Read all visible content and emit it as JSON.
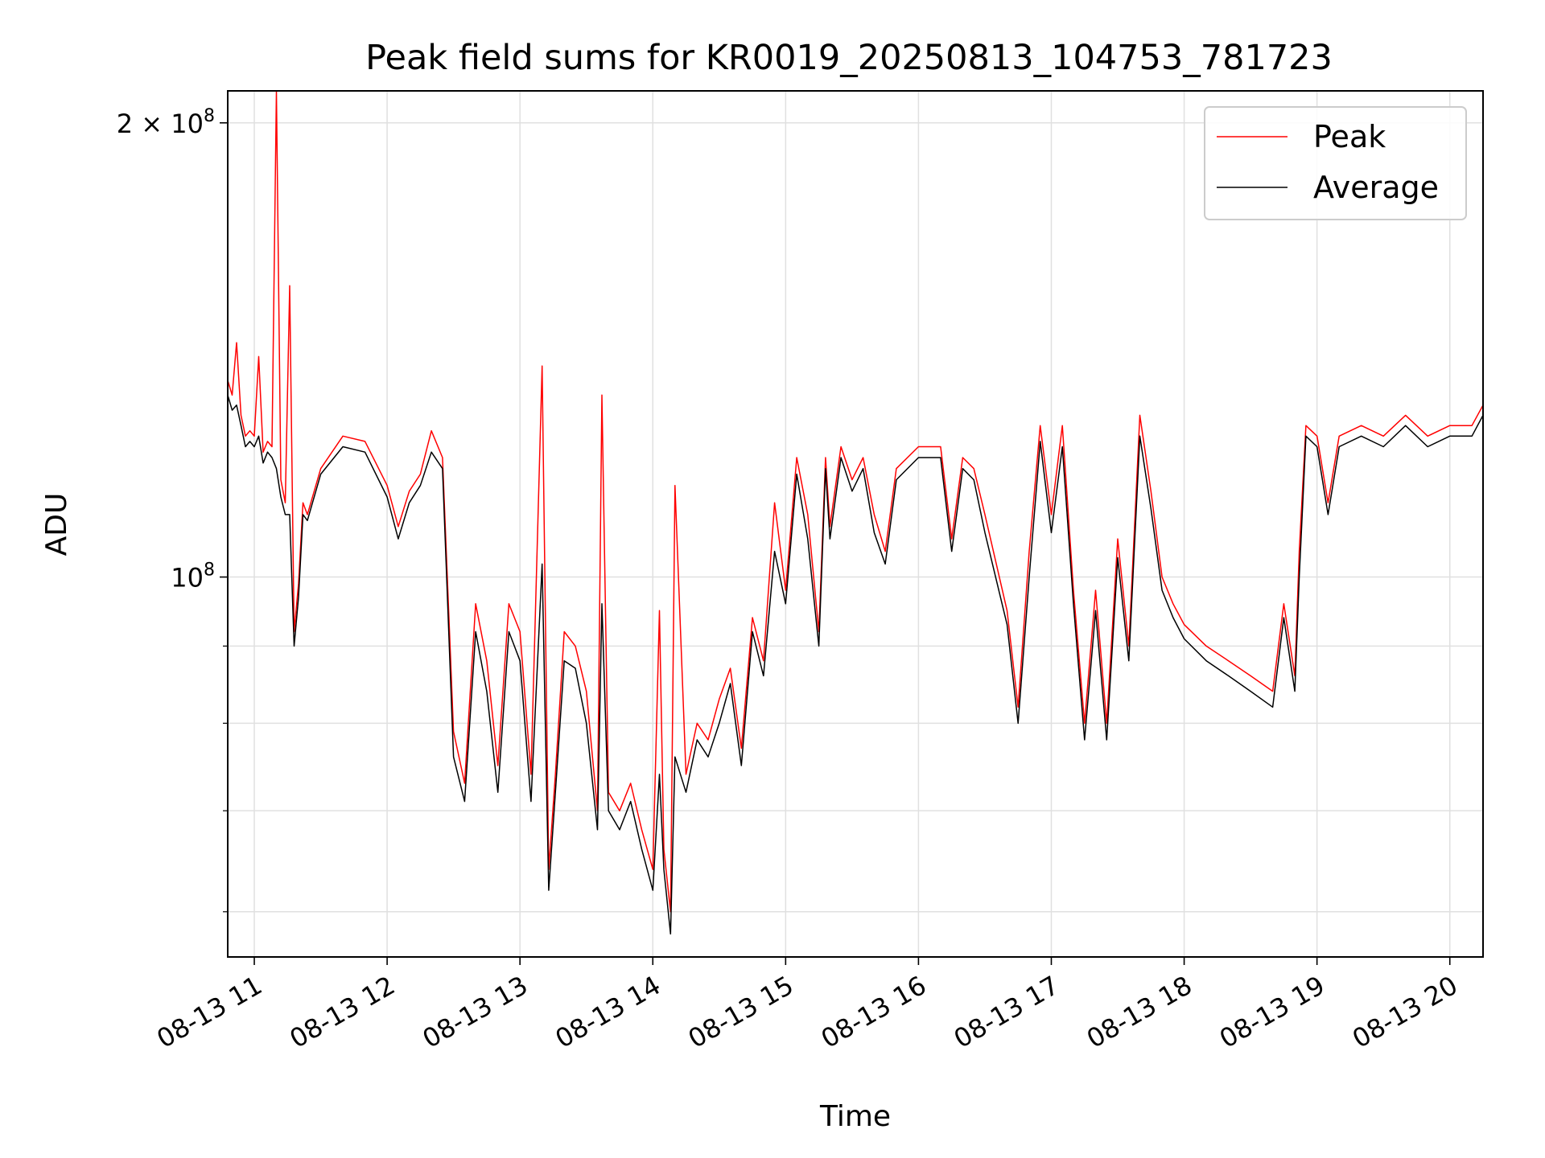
{
  "chart_data": {
    "type": "line",
    "title": "Peak field sums for KR0019_20250813_104753_781723",
    "xlabel": "Time",
    "ylabel": "ADU",
    "yscale": "log",
    "ylim": [
      56000000,
      210000000
    ],
    "xlim": [
      "08-13 10:48",
      "08-13 20:15"
    ],
    "x_ticks": [
      "08-13 11",
      "08-13 12",
      "08-13 13",
      "08-13 14",
      "08-13 15",
      "08-13 16",
      "08-13 17",
      "08-13 18",
      "08-13 19",
      "08-13 20"
    ],
    "y_tick_labels": [
      {
        "value": 100000000,
        "base": "10",
        "exp": "8",
        "coef": ""
      },
      {
        "value": 200000000,
        "base": "10",
        "exp": "8",
        "coef": "2 × "
      }
    ],
    "grid": true,
    "legend_position": "top-right",
    "colors": {
      "Peak": "#ff0000",
      "Average": "#000000"
    },
    "x": [
      "10:48",
      "10:50",
      "10:52",
      "10:54",
      "10:56",
      "10:58",
      "11:00",
      "11:02",
      "11:04",
      "11:06",
      "11:08",
      "11:10",
      "11:12",
      "11:14",
      "11:16",
      "11:18",
      "11:20",
      "11:22",
      "11:24",
      "11:30",
      "11:40",
      "11:50",
      "12:00",
      "12:05",
      "12:10",
      "12:15",
      "12:20",
      "12:25",
      "12:30",
      "12:35",
      "12:40",
      "12:45",
      "12:50",
      "12:55",
      "13:00",
      "13:05",
      "13:10",
      "13:13",
      "13:16",
      "13:20",
      "13:25",
      "13:30",
      "13:35",
      "13:37",
      "13:40",
      "13:45",
      "13:50",
      "13:55",
      "14:00",
      "14:03",
      "14:05",
      "14:08",
      "14:10",
      "14:15",
      "14:20",
      "14:25",
      "14:30",
      "14:35",
      "14:40",
      "14:45",
      "14:50",
      "14:55",
      "15:00",
      "15:05",
      "15:10",
      "15:15",
      "15:18",
      "15:20",
      "15:25",
      "15:30",
      "15:35",
      "15:40",
      "15:45",
      "15:50",
      "16:00",
      "16:10",
      "16:15",
      "16:20",
      "16:25",
      "16:30",
      "16:40",
      "16:45",
      "16:50",
      "16:55",
      "17:00",
      "17:05",
      "17:10",
      "17:15",
      "17:20",
      "17:25",
      "17:30",
      "17:35",
      "17:40",
      "17:45",
      "17:50",
      "17:55",
      "18:00",
      "18:10",
      "18:20",
      "18:30",
      "18:40",
      "18:45",
      "18:50",
      "18:52",
      "18:55",
      "19:00",
      "19:05",
      "19:10",
      "19:20",
      "19:30",
      "19:40",
      "19:50",
      "20:00",
      "20:10",
      "20:15"
    ],
    "series": [
      {
        "name": "Peak",
        "values": [
          135000000,
          132000000,
          143000000,
          128000000,
          124000000,
          125000000,
          124000000,
          140000000,
          121000000,
          123000000,
          122000000,
          210000000,
          116000000,
          112000000,
          156000000,
          92000000,
          99000000,
          112000000,
          110000000,
          118000000,
          124000000,
          123000000,
          115000000,
          108000000,
          114000000,
          117000000,
          125000000,
          120000000,
          79000000,
          73000000,
          96000000,
          88000000,
          75000000,
          96000000,
          92000000,
          74000000,
          138000000,
          64000000,
          74000000,
          92000000,
          90000000,
          84000000,
          70000000,
          132000000,
          72000000,
          70000000,
          73000000,
          68000000,
          64000000,
          95000000,
          66000000,
          60000000,
          115000000,
          74000000,
          80000000,
          78000000,
          83000000,
          87000000,
          77000000,
          94000000,
          88000000,
          112000000,
          98000000,
          120000000,
          110000000,
          92000000,
          120000000,
          108000000,
          122000000,
          116000000,
          120000000,
          110000000,
          104000000,
          118000000,
          122000000,
          122000000,
          106000000,
          120000000,
          118000000,
          110000000,
          95000000,
          82000000,
          104000000,
          126000000,
          110000000,
          126000000,
          98000000,
          80000000,
          98000000,
          80000000,
          106000000,
          90000000,
          128000000,
          114000000,
          100000000,
          96000000,
          93000000,
          90000000,
          88000000,
          86000000,
          84000000,
          96000000,
          86000000,
          104000000,
          126000000,
          124000000,
          112000000,
          124000000,
          126000000,
          124000000,
          128000000,
          124000000,
          126000000,
          126000000,
          130000000
        ]
      },
      {
        "name": "Average",
        "values": [
          132000000,
          129000000,
          130000000,
          126000000,
          122000000,
          123000000,
          122000000,
          124000000,
          119000000,
          121000000,
          120000000,
          118000000,
          113000000,
          110000000,
          110000000,
          90000000,
          97000000,
          110000000,
          109000000,
          117000000,
          122000000,
          121000000,
          113000000,
          106000000,
          112000000,
          115000000,
          121000000,
          118000000,
          76000000,
          71000000,
          92000000,
          84000000,
          72000000,
          92000000,
          88000000,
          71000000,
          102000000,
          62000000,
          72000000,
          88000000,
          87000000,
          80000000,
          68000000,
          96000000,
          70000000,
          68000000,
          71000000,
          66000000,
          62000000,
          74000000,
          64000000,
          58000000,
          76000000,
          72000000,
          78000000,
          76000000,
          80000000,
          85000000,
          75000000,
          92000000,
          86000000,
          104000000,
          96000000,
          117000000,
          106000000,
          90000000,
          118000000,
          106000000,
          120000000,
          114000000,
          118000000,
          107000000,
          102000000,
          116000000,
          120000000,
          120000000,
          104000000,
          118000000,
          116000000,
          107000000,
          93000000,
          80000000,
          100000000,
          123000000,
          107000000,
          122000000,
          96000000,
          78000000,
          95000000,
          78000000,
          103000000,
          88000000,
          124000000,
          111000000,
          98000000,
          94000000,
          91000000,
          88000000,
          86000000,
          84000000,
          82000000,
          94000000,
          84000000,
          100000000,
          124000000,
          122000000,
          110000000,
          122000000,
          124000000,
          122000000,
          126000000,
          122000000,
          124000000,
          124000000,
          128000000
        ]
      }
    ]
  }
}
